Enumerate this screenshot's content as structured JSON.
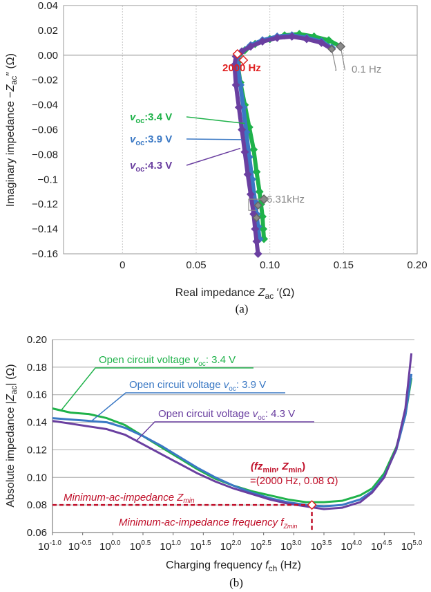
{
  "colors": {
    "green": "#1fb24a",
    "blue": "#3a78c4",
    "purple": "#6a3fa0",
    "red": "#e02020",
    "darkred": "#c0102a",
    "gray": "#8a8a8a",
    "grid": "#c8c8c8"
  },
  "chart_data": [
    {
      "type": "scatter",
      "panel_label": "(a)",
      "xlabel": "Real impedance Z_ac ′(Ω)",
      "ylabel": "Imaginary impedance −Z_ac″ (Ω)",
      "xlim": [
        -0.04,
        0.2
      ],
      "ylim": [
        -0.16,
        0.04
      ],
      "x_ticks": [
        "0",
        "0.05",
        "0.10",
        "0.15",
        "0.20"
      ],
      "y_ticks": [
        "0.04",
        "0.02",
        "0.00",
        "−0.02",
        "−0.04",
        "−0.06",
        "−0.08",
        "−0.1",
        "−0.12",
        "−0.14",
        "−0.16"
      ],
      "grid": "vertical",
      "series": [
        {
          "name": "voc:3.4 V",
          "color": "green",
          "x": [
            0.148,
            0.14,
            0.13,
            0.12,
            0.11,
            0.1,
            0.09,
            0.083,
            0.079,
            0.078,
            0.08,
            0.083,
            0.086,
            0.089,
            0.091,
            0.093,
            0.094,
            0.095,
            0.0955,
            0.096
          ],
          "y": [
            0.007,
            0.012,
            0.015,
            0.017,
            0.016,
            0.013,
            0.009,
            0.004,
            0.0,
            -0.006,
            -0.022,
            -0.04,
            -0.058,
            -0.076,
            -0.094,
            -0.11,
            -0.12,
            -0.13,
            -0.14,
            -0.148
          ]
        },
        {
          "name": "voc:3.9 V",
          "color": "blue",
          "x": [
            0.142,
            0.135,
            0.125,
            0.115,
            0.105,
            0.095,
            0.087,
            0.081,
            0.078,
            0.078,
            0.08,
            0.082,
            0.084,
            0.086,
            0.088,
            0.09,
            0.091,
            0.092,
            0.093
          ],
          "y": [
            0.006,
            0.011,
            0.014,
            0.016,
            0.015,
            0.012,
            0.008,
            0.003,
            -0.001,
            -0.008,
            -0.024,
            -0.042,
            -0.062,
            -0.082,
            -0.1,
            -0.118,
            -0.128,
            -0.138,
            -0.148
          ]
        },
        {
          "name": "voc:4.3 V",
          "color": "purple",
          "x": [
            0.142,
            0.135,
            0.125,
            0.115,
            0.105,
            0.095,
            0.087,
            0.081,
            0.077,
            0.076,
            0.077,
            0.079,
            0.081,
            0.083,
            0.085,
            0.087,
            0.089,
            0.09,
            0.091,
            0.092
          ],
          "y": [
            0.005,
            0.01,
            0.013,
            0.015,
            0.014,
            0.011,
            0.007,
            0.003,
            -0.001,
            -0.008,
            -0.024,
            -0.042,
            -0.06,
            -0.078,
            -0.096,
            -0.112,
            -0.128,
            -0.14,
            -0.15,
            -0.16
          ]
        }
      ],
      "annotations": {
        "f2000": "2000 Hz",
        "f01": "0.1 Hz",
        "f631": "6.31kHz"
      },
      "legend_labels": [
        {
          "v": "v",
          "sub": "oc",
          "rest": ":3.4 V",
          "color": "green"
        },
        {
          "v": "v",
          "sub": "oc",
          "rest": ":3.9 V",
          "color": "blue"
        },
        {
          "v": "v",
          "sub": "oc",
          "rest": ":4.3 V",
          "color": "purple"
        }
      ]
    },
    {
      "type": "line",
      "panel_label": "(b)",
      "xlabel": "Charging frequency f_ch (Hz)",
      "ylabel": "Absolute impedance |Z_ac| (Ω)",
      "xscale": "log",
      "xlim_log10": [
        -1.0,
        5.0
      ],
      "ylim": [
        0.06,
        0.2
      ],
      "x_ticks": [
        "-1.0",
        "-0.5",
        "0.0",
        "0.5",
        "1.0",
        "1.5",
        "2.0",
        "2.5",
        "3.0",
        "3.5",
        "4.0",
        "4.5",
        "5.0"
      ],
      "y_ticks": [
        "0.20",
        "0.18",
        "0.16",
        "0.14",
        "0.12",
        "0.10",
        "0.08",
        "0.06"
      ],
      "grid": "horizontal",
      "series": [
        {
          "name": "Open circuit voltage voc: 3.4 V",
          "color": "green",
          "log10_x": [
            -1.0,
            -0.7,
            -0.4,
            -0.1,
            0.2,
            0.5,
            0.8,
            1.1,
            1.4,
            1.7,
            2.0,
            2.3,
            2.6,
            2.9,
            3.2,
            3.5,
            3.8,
            4.1,
            4.3,
            4.5,
            4.7,
            4.85,
            4.95
          ],
          "values": [
            0.15,
            0.147,
            0.146,
            0.143,
            0.138,
            0.13,
            0.122,
            0.114,
            0.106,
            0.099,
            0.094,
            0.09,
            0.087,
            0.084,
            0.082,
            0.082,
            0.083,
            0.087,
            0.092,
            0.103,
            0.122,
            0.145,
            0.172
          ]
        },
        {
          "name": "Open circuit voltage voc: 3.9 V",
          "color": "blue",
          "log10_x": [
            -1.0,
            -0.7,
            -0.4,
            -0.1,
            0.2,
            0.5,
            0.8,
            1.1,
            1.4,
            1.7,
            2.0,
            2.3,
            2.6,
            2.9,
            3.2,
            3.5,
            3.8,
            4.1,
            4.3,
            4.5,
            4.7,
            4.85,
            4.95
          ],
          "values": [
            0.143,
            0.142,
            0.141,
            0.14,
            0.136,
            0.13,
            0.123,
            0.115,
            0.107,
            0.1,
            0.094,
            0.089,
            0.085,
            0.082,
            0.08,
            0.079,
            0.08,
            0.084,
            0.09,
            0.101,
            0.12,
            0.145,
            0.175
          ]
        },
        {
          "name": "Open circuit voltage voc: 4.3 V",
          "color": "purple",
          "log10_x": [
            -1.0,
            -0.7,
            -0.4,
            -0.1,
            0.2,
            0.5,
            0.8,
            1.1,
            1.4,
            1.7,
            2.0,
            2.3,
            2.6,
            2.9,
            3.2,
            3.5,
            3.8,
            4.1,
            4.3,
            4.5,
            4.7,
            4.85,
            4.95
          ],
          "values": [
            0.141,
            0.139,
            0.137,
            0.135,
            0.131,
            0.124,
            0.117,
            0.11,
            0.103,
            0.097,
            0.092,
            0.088,
            0.084,
            0.081,
            0.079,
            0.077,
            0.078,
            0.082,
            0.089,
            0.1,
            0.121,
            0.15,
            0.19
          ]
        }
      ],
      "minimum_point": {
        "log10_f": 3.3,
        "z": 0.08
      },
      "annotations": {
        "fz_label": "(fz",
        "fz_sub": "min",
        "zmin_label": ", Z",
        "zmin_sub": "min",
        "close": ")",
        "min_value": "=(2000 Hz, 0.08 Ω)",
        "min_z_line": "Minimum-ac-impedance Z",
        "min_z_sub": "min",
        "min_f_line": "Minimum-ac-impedance frequency f",
        "min_f_sub": "Zmin"
      },
      "legend_labels": [
        {
          "text": "Open circuit voltage ",
          "v": "v",
          "sub": "oc",
          "rest": ": 3.4 V",
          "color": "green"
        },
        {
          "text": "Open circuit voltage ",
          "v": "v",
          "sub": "oc",
          "rest": ": 3.9 V",
          "color": "blue"
        },
        {
          "text": "Open circuit voltage ",
          "v": "v",
          "sub": "oc",
          "rest": ": 4.3 V",
          "color": "purple"
        }
      ]
    }
  ]
}
